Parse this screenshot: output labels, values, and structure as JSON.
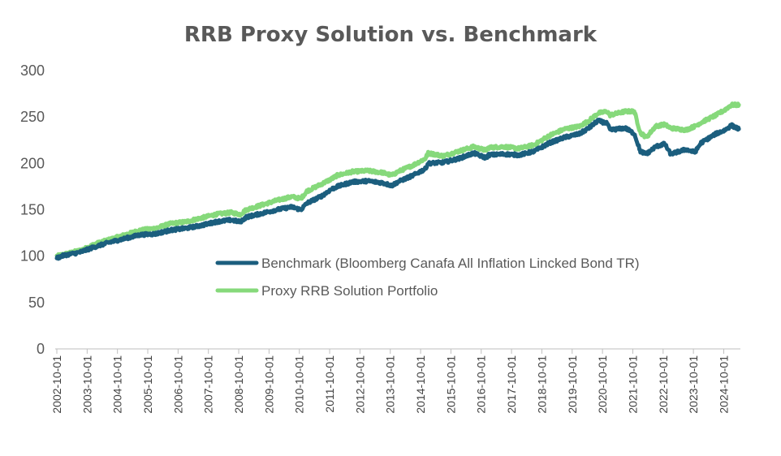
{
  "chart_data": {
    "type": "line",
    "title": "RRB Proxy Solution vs. Benchmark",
    "xlabel": "",
    "ylabel": "",
    "ylim": [
      0,
      300
    ],
    "yticks": [
      "0",
      "50",
      "100",
      "150",
      "200",
      "250",
      "300"
    ],
    "categories": [
      "2002-10-01",
      "2003-10-01",
      "2004-10-01",
      "2005-10-01",
      "2006-10-01",
      "2007-10-01",
      "2008-10-01",
      "2009-10-01",
      "2010-10-01",
      "2011-10-01",
      "2012-10-01",
      "2013-10-01",
      "2014-10-01",
      "2015-10-01",
      "2016-10-01",
      "2017-10-01",
      "2018-10-01",
      "2019-10-01",
      "2020-10-01",
      "2021-10-01",
      "2022-10-01",
      "2023-10-01",
      "2024-10-01"
    ],
    "x_end": "2025-04",
    "grid": false,
    "legend_position": "center-right",
    "x": [
      2002.75,
      2003.0,
      2003.5,
      2003.75,
      2004.0,
      2004.5,
      2005.0,
      2005.5,
      2006.0,
      2006.5,
      2007.0,
      2007.5,
      2008.0,
      2008.5,
      2008.8,
      2009.0,
      2009.5,
      2010.0,
      2010.5,
      2010.8,
      2011.0,
      2011.5,
      2011.8,
      2012.0,
      2012.5,
      2013.0,
      2013.5,
      2013.8,
      2014.0,
      2014.5,
      2014.9,
      2015.0,
      2015.5,
      2016.0,
      2016.5,
      2016.9,
      2017.0,
      2017.5,
      2018.0,
      2018.5,
      2019.0,
      2019.5,
      2020.0,
      2020.3,
      2020.6,
      2020.9,
      2021.0,
      2021.5,
      2021.8,
      2022.0,
      2022.2,
      2022.5,
      2022.8,
      2023.0,
      2023.5,
      2023.8,
      2024.0,
      2024.5,
      2024.8,
      2025.0,
      2025.25
    ],
    "series": [
      {
        "name": "Benchmark (Bloomberg Canafa All Inflation Lincked Bond TR)",
        "color": "#1b5e7e",
        "values": [
          98,
          101,
          104,
          107,
          110,
          115,
          119,
          123,
          124,
          128,
          130,
          133,
          137,
          139,
          137,
          142,
          146,
          150,
          153,
          150,
          157,
          165,
          172,
          175,
          180,
          181,
          179,
          176,
          180,
          187,
          194,
          200,
          201,
          205,
          211,
          206,
          209,
          210,
          209,
          213,
          222,
          228,
          232,
          238,
          246,
          243,
          236,
          238,
          232,
          213,
          210,
          218,
          221,
          210,
          215,
          212,
          222,
          232,
          236,
          241,
          237
        ],
        "sample_values": [
          98,
          104,
          110,
          119,
          123,
          128,
          133,
          137,
          137,
          146,
          150,
          157,
          165,
          175,
          180,
          176,
          194,
          200,
          211,
          209,
          209,
          222,
          232,
          246,
          238,
          213,
          218,
          215,
          232,
          237
        ]
      },
      {
        "name": "Proxy RRB Solution Portfolio",
        "color": "#86d97b",
        "values": [
          100,
          102,
          106,
          109,
          113,
          118,
          123,
          128,
          130,
          135,
          137,
          141,
          145,
          147,
          145,
          150,
          155,
          160,
          164,
          162,
          170,
          178,
          183,
          187,
          191,
          192,
          190,
          187,
          191,
          198,
          205,
          211,
          208,
          213,
          218,
          214,
          217,
          218,
          216,
          220,
          230,
          237,
          240,
          246,
          254,
          256,
          252,
          256,
          256,
          233,
          228,
          240,
          242,
          238,
          236,
          240,
          244,
          252,
          258,
          263,
          263
        ],
        "sample_values": [
          100,
          106,
          113,
          123,
          128,
          135,
          141,
          145,
          145,
          155,
          160,
          170,
          178,
          187,
          191,
          187,
          205,
          211,
          218,
          217,
          216,
          230,
          240,
          254,
          256,
          233,
          240,
          236,
          244,
          263
        ]
      }
    ]
  }
}
